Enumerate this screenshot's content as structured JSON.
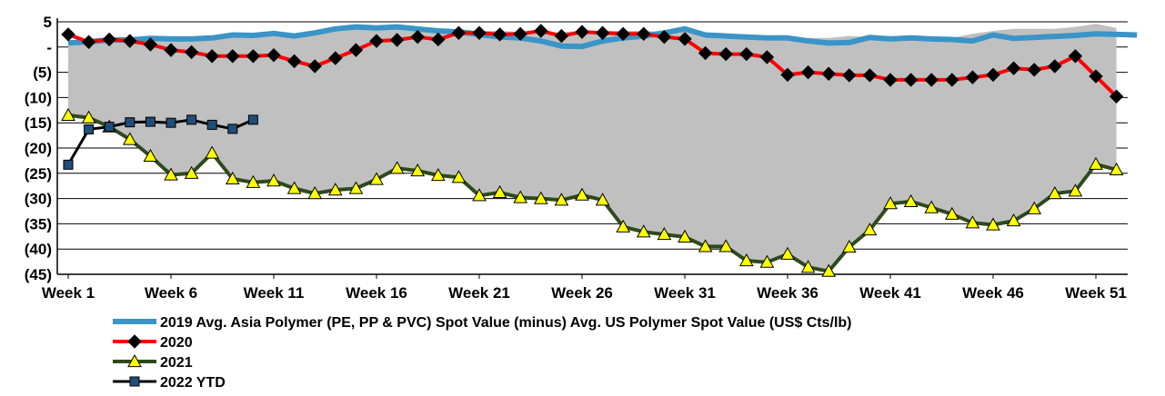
{
  "chart_data": {
    "type": "line",
    "title": "",
    "xlabel": "",
    "ylabel": "",
    "ylim": [
      -45,
      5
    ],
    "y_ticks": [
      5,
      0,
      -5,
      -10,
      -15,
      -20,
      -25,
      -30,
      -35,
      -40,
      -45
    ],
    "y_tick_labels": [
      "5",
      "-",
      "(5)",
      "(10)",
      "(15)",
      "(20)",
      "(25)",
      "(30)",
      "(35)",
      "(40)",
      "(45)"
    ],
    "x_tick_labels": [
      {
        "week": 1,
        "label": "Week 1"
      },
      {
        "week": 6,
        "label": "Week 6"
      },
      {
        "week": 11,
        "label": "Week 11"
      },
      {
        "week": 16,
        "label": "Week 16"
      },
      {
        "week": 21,
        "label": "Week 21"
      },
      {
        "week": 26,
        "label": "Week 26"
      },
      {
        "week": 31,
        "label": "Week 31"
      },
      {
        "week": 36,
        "label": "Week 36"
      },
      {
        "week": 41,
        "label": "Week 41"
      },
      {
        "week": 46,
        "label": "Week 46"
      },
      {
        "week": 51,
        "label": "Week 51"
      }
    ],
    "grid": "horizontal",
    "legend_position": "bottom",
    "band": {
      "description": "range",
      "color": "#c0c0c0",
      "upper": [
        1.0,
        1.2,
        1.5,
        1.5,
        2.0,
        2.0,
        2.0,
        2.2,
        2.5,
        2.5,
        2.8,
        2.5,
        3.0,
        3.8,
        4.2,
        4.0,
        4.2,
        3.8,
        3.5,
        3.5,
        3.2,
        3.2,
        3.0,
        2.8,
        3.0,
        3.2,
        3.2,
        3.2,
        3.2,
        3.0,
        3.6,
        2.6,
        2.4,
        2.2,
        2.2,
        2.0,
        1.8,
        1.8,
        2.2,
        2.0,
        2.2,
        2.0,
        2.0,
        1.8,
        2.6,
        3.2,
        3.6,
        3.6,
        3.6,
        4.0,
        4.6,
        3.8
      ],
      "lower": [
        -13.5,
        -14.0,
        -15.8,
        -18.3,
        -21.6,
        -25.3,
        -25.0,
        -21.0,
        -26.1,
        -26.8,
        -26.5,
        -28.0,
        -29.0,
        -28.3,
        -28.0,
        -26.2,
        -24.0,
        -24.5,
        -25.4,
        -25.8,
        -29.4,
        -28.8,
        -29.8,
        -30.0,
        -30.3,
        -29.3,
        -30.3,
        -35.6,
        -36.6,
        -37.1,
        -37.6,
        -39.5,
        -39.5,
        -42.3,
        -42.6,
        -41.0,
        -43.6,
        -44.4,
        -39.6,
        -36.2,
        -31.0,
        -30.6,
        -31.8,
        -33.1,
        -34.8,
        -35.2,
        -34.4,
        -32.0,
        -29.0,
        -28.5,
        -23.2,
        -24.3
      ]
    },
    "series": [
      {
        "name": "2019 Avg. Asia Polymer (PE, PP & PVC) Spot Value (minus) Avg. US Polymer Spot Value (US$ Cts/lb)",
        "color": "#3a94c7",
        "marker": "none",
        "values": [
          0.8,
          1.1,
          1.4,
          1.4,
          1.7,
          1.6,
          1.6,
          1.8,
          2.4,
          2.3,
          2.7,
          2.2,
          2.8,
          3.6,
          4.0,
          3.8,
          4.0,
          3.6,
          3.2,
          3.0,
          2.5,
          2.0,
          1.8,
          1.2,
          0.2,
          0.1,
          1.2,
          1.8,
          2.2,
          2.8,
          3.6,
          2.4,
          2.2,
          2.0,
          1.8,
          1.8,
          1.2,
          0.8,
          0.9,
          1.9,
          1.6,
          1.8,
          1.6,
          1.5,
          1.2,
          2.4,
          1.7,
          1.9,
          2.1,
          2.3,
          2.6,
          2.5,
          2.4
        ]
      },
      {
        "name": "2020",
        "color": "#ff0000",
        "marker": "diamond",
        "values": [
          2.5,
          1.0,
          1.5,
          1.2,
          0.5,
          -0.6,
          -1.0,
          -1.8,
          -1.8,
          -1.8,
          -1.6,
          -2.8,
          -3.8,
          -2.2,
          -0.6,
          1.2,
          1.4,
          2.0,
          1.5,
          2.8,
          2.8,
          2.5,
          2.6,
          3.2,
          2.2,
          3.0,
          2.8,
          2.6,
          2.6,
          2.0,
          1.6,
          -1.2,
          -1.4,
          -1.4,
          -2.0,
          -5.5,
          -5.0,
          -5.3,
          -5.6,
          -5.6,
          -6.5,
          -6.5,
          -6.5,
          -6.5,
          -6.0,
          -5.5,
          -4.2,
          -4.5,
          -3.8,
          -1.8,
          -5.8,
          -9.8
        ]
      },
      {
        "name": "2021",
        "color": "#2e4a1c",
        "marker": "triangle",
        "values": [
          -13.5,
          -14.0,
          -15.8,
          -18.3,
          -21.6,
          -25.3,
          -25.0,
          -21.0,
          -26.1,
          -26.8,
          -26.5,
          -28.0,
          -29.0,
          -28.3,
          -28.0,
          -26.2,
          -24.0,
          -24.5,
          -25.4,
          -25.8,
          -29.4,
          -28.8,
          -29.8,
          -30.0,
          -30.3,
          -29.3,
          -30.3,
          -35.6,
          -36.6,
          -37.1,
          -37.6,
          -39.5,
          -39.5,
          -42.3,
          -42.6,
          -41.0,
          -43.6,
          -44.4,
          -39.6,
          -36.2,
          -31.0,
          -30.6,
          -31.8,
          -33.1,
          -34.8,
          -35.2,
          -34.4,
          -32.0,
          -29.0,
          -28.5,
          -23.2,
          -24.3
        ]
      },
      {
        "name": "2022 YTD",
        "color": "#000000",
        "marker": "square",
        "values": [
          -23.3,
          -16.3,
          -15.8,
          -14.9,
          -14.8,
          -15.0,
          -14.4,
          -15.4,
          -16.2,
          -14.4
        ]
      }
    ]
  }
}
